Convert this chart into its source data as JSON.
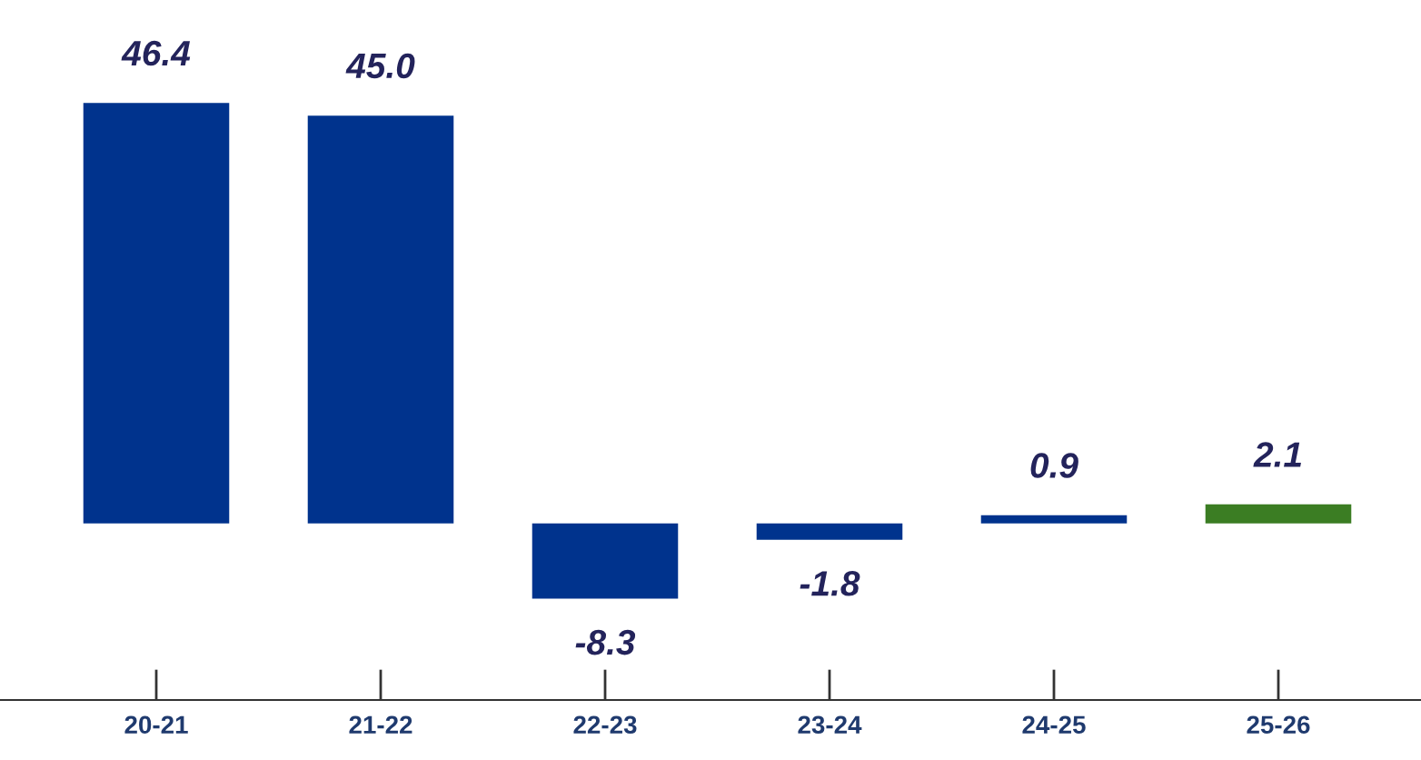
{
  "chart_data": {
    "type": "bar",
    "categories": [
      "20-21",
      "21-22",
      "22-23",
      "23-24",
      "24-25",
      "25-26"
    ],
    "values": [
      46.4,
      45.0,
      -8.3,
      -1.8,
      0.9,
      2.1
    ],
    "colors": [
      "#00338d",
      "#00338d",
      "#00338d",
      "#00338d",
      "#00338d",
      "#3b7d23"
    ],
    "value_labels": [
      "46.4",
      "45.0",
      "-8.3",
      "-1.8",
      "0.9",
      "2.1"
    ],
    "grid": false,
    "legend": false,
    "tick_labels": "x"
  }
}
